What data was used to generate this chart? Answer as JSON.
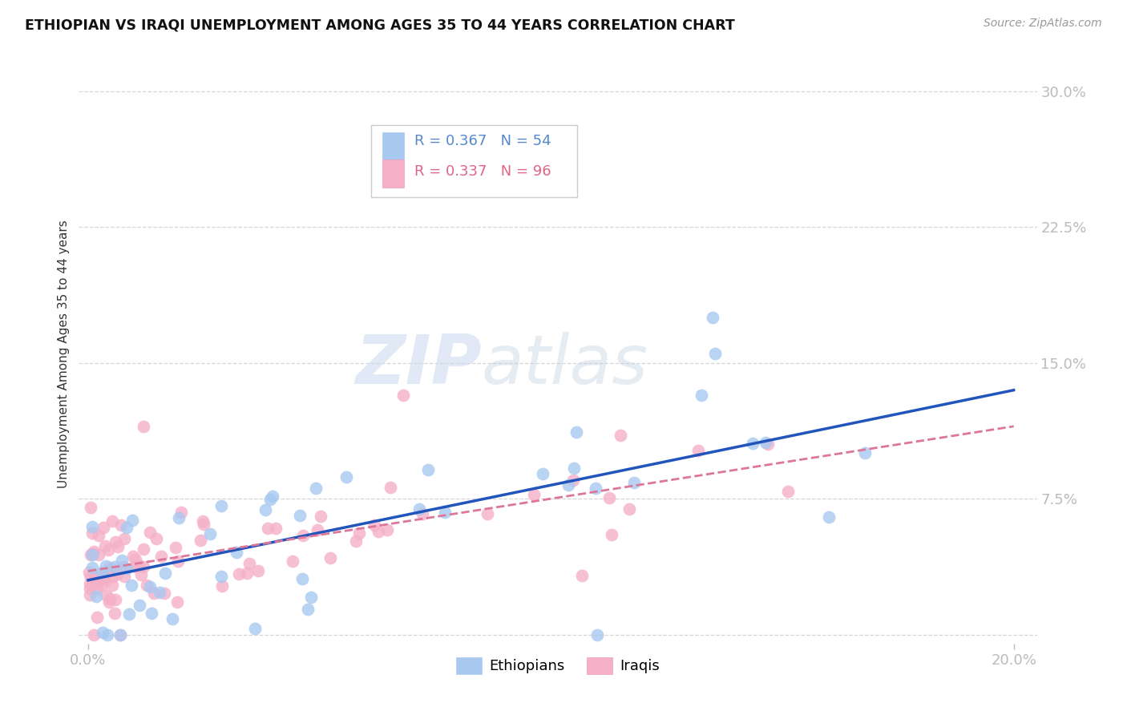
{
  "title": "ETHIOPIAN VS IRAQI UNEMPLOYMENT AMONG AGES 35 TO 44 YEARS CORRELATION CHART",
  "source": "Source: ZipAtlas.com",
  "ylabel": "Unemployment Among Ages 35 to 44 years",
  "xlim": [
    -0.002,
    0.205
  ],
  "ylim": [
    -0.005,
    0.315
  ],
  "xticks": [
    0.0,
    0.2
  ],
  "xticklabels": [
    "0.0%",
    "20.0%"
  ],
  "yticks": [
    0.0,
    0.075,
    0.15,
    0.225,
    0.3
  ],
  "yticklabels": [
    "",
    "7.5%",
    "15.0%",
    "22.5%",
    "30.0%"
  ],
  "background_color": "#ffffff",
  "grid_color": "#cccccc",
  "watermark_zip": "ZIP",
  "watermark_atlas": "atlas",
  "ethiopian_color": "#a8c8f0",
  "iraqi_color": "#f5b0c8",
  "ethiopian_line_color": "#2255bb",
  "iraqi_line_color": "#dd7799",
  "legend_R_ethiopian": "R = 0.367",
  "legend_N_ethiopian": "N = 54",
  "legend_R_iraqi": "R = 0.337",
  "legend_N_iraqi": "N = 96",
  "n_ethiopian": 54,
  "n_iraqi": 96,
  "eth_line_x0": 0.0,
  "eth_line_y0": 0.03,
  "eth_line_x1": 0.2,
  "eth_line_y1": 0.135,
  "irq_line_x0": 0.0,
  "irq_line_y0": 0.035,
  "irq_line_x1": 0.2,
  "irq_line_y1": 0.115
}
